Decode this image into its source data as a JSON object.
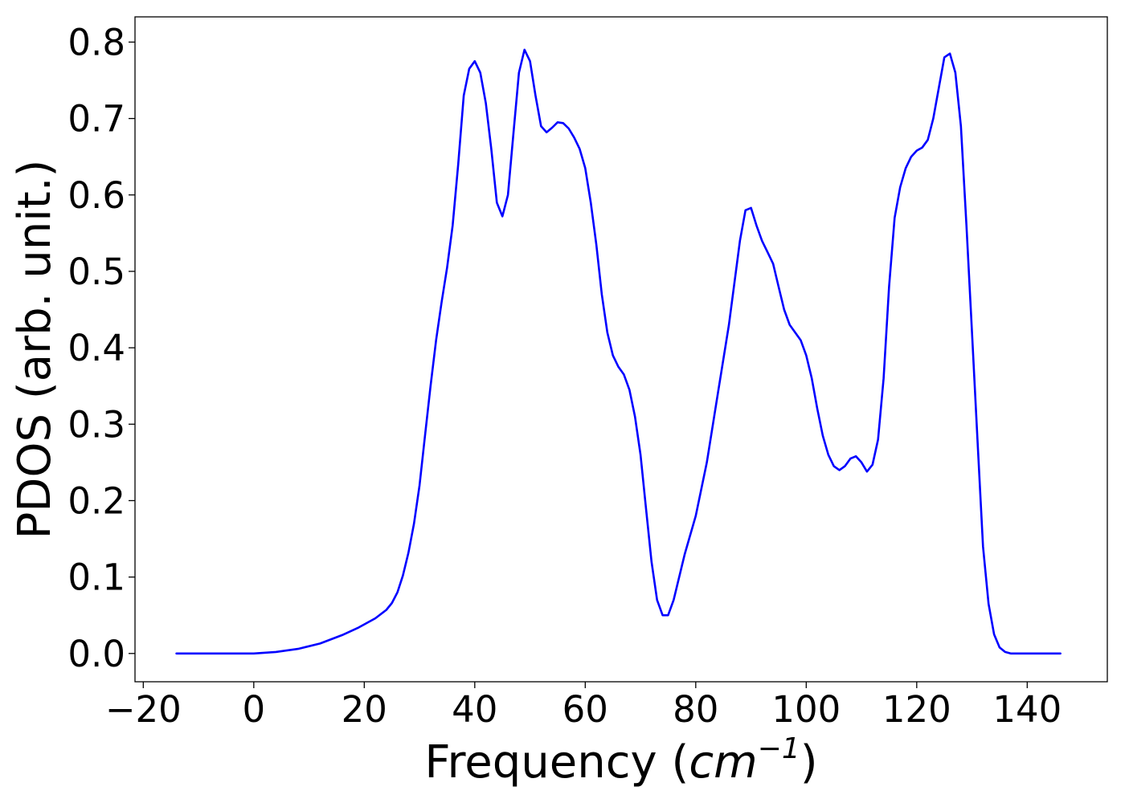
{
  "chart_data": {
    "type": "line",
    "title": "",
    "xlabel_text": "Frequency (",
    "xlabel_math": "cm",
    "xlabel_exponent": "−1",
    "xlabel_close": ")",
    "ylabel": "PDOS (arb. unit.)",
    "xlim": [
      -21.5,
      154.5
    ],
    "ylim": [
      -0.037,
      0.833
    ],
    "grid": false,
    "legend": "none",
    "line_color": "#0000ff",
    "x_ticks": [
      -20,
      0,
      20,
      40,
      60,
      80,
      100,
      120,
      140
    ],
    "x_tick_labels": [
      "−20",
      "0",
      "20",
      "40",
      "60",
      "80",
      "100",
      "120",
      "140"
    ],
    "y_ticks": [
      0.0,
      0.1,
      0.2,
      0.3,
      0.4,
      0.5,
      0.6,
      0.7,
      0.8
    ],
    "y_tick_labels": [
      "0.0",
      "0.1",
      "0.2",
      "0.3",
      "0.4",
      "0.5",
      "0.6",
      "0.7",
      "0.8"
    ],
    "series": [
      {
        "x": [
          -14,
          -10,
          -5,
          0,
          4,
          8,
          12,
          16,
          19,
          22,
          24,
          25,
          26,
          27,
          28,
          29,
          30,
          31,
          32,
          33,
          34,
          35,
          36,
          37,
          38,
          39,
          40,
          41,
          42,
          43,
          44,
          45,
          46,
          47,
          48,
          49,
          50,
          51,
          52,
          53,
          54,
          55,
          56,
          57,
          58,
          59,
          60,
          61,
          62,
          63,
          64,
          65,
          66,
          67,
          68,
          69,
          70,
          71,
          72,
          73,
          74,
          75,
          76,
          78,
          80,
          82,
          84,
          86,
          88,
          89,
          90,
          91,
          92,
          93,
          94,
          95,
          96,
          97,
          98,
          99,
          100,
          101,
          102,
          103,
          104,
          105,
          106,
          107,
          108,
          109,
          110,
          111,
          112,
          113,
          114,
          115,
          116,
          117,
          118,
          119,
          120,
          121,
          122,
          123,
          124,
          125,
          126,
          127,
          128,
          129,
          130,
          131,
          132,
          133,
          134,
          135,
          136,
          137,
          140,
          146
        ],
        "y": [
          0.0,
          0.0,
          0.0,
          0.0,
          0.002,
          0.006,
          0.013,
          0.024,
          0.034,
          0.046,
          0.057,
          0.066,
          0.08,
          0.102,
          0.132,
          0.17,
          0.22,
          0.285,
          0.35,
          0.41,
          0.46,
          0.505,
          0.56,
          0.64,
          0.73,
          0.765,
          0.775,
          0.76,
          0.72,
          0.66,
          0.59,
          0.572,
          0.6,
          0.68,
          0.76,
          0.79,
          0.775,
          0.73,
          0.69,
          0.682,
          0.688,
          0.695,
          0.694,
          0.687,
          0.675,
          0.66,
          0.635,
          0.59,
          0.535,
          0.47,
          0.42,
          0.39,
          0.375,
          0.365,
          0.345,
          0.31,
          0.26,
          0.19,
          0.12,
          0.07,
          0.05,
          0.05,
          0.07,
          0.13,
          0.18,
          0.25,
          0.34,
          0.43,
          0.54,
          0.58,
          0.583,
          0.56,
          0.54,
          0.525,
          0.51,
          0.48,
          0.45,
          0.43,
          0.42,
          0.41,
          0.39,
          0.36,
          0.32,
          0.285,
          0.26,
          0.245,
          0.24,
          0.245,
          0.255,
          0.258,
          0.25,
          0.238,
          0.247,
          0.28,
          0.36,
          0.48,
          0.57,
          0.61,
          0.635,
          0.65,
          0.658,
          0.662,
          0.672,
          0.7,
          0.74,
          0.78,
          0.785,
          0.76,
          0.69,
          0.56,
          0.42,
          0.28,
          0.14,
          0.065,
          0.025,
          0.008,
          0.002,
          0.0,
          0.0,
          0.0
        ]
      }
    ]
  }
}
